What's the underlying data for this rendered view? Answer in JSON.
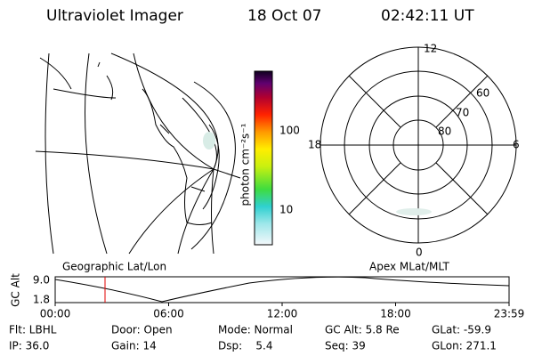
{
  "header": {
    "title": "Ultraviolet Imager",
    "date": "18 Oct 07",
    "time": "02:42:11 UT"
  },
  "colorbar": {
    "label": "photon cm⁻²s⁻¹",
    "ticks": [
      "100",
      "10"
    ]
  },
  "polar": {
    "mlt_labels": [
      "12",
      "18",
      "6",
      "0"
    ],
    "mlat_labels": [
      "60",
      "70",
      "80"
    ]
  },
  "orbit": {
    "left_title": "Geographic Lat/Lon",
    "right_title": "Apex MLat/MLT",
    "y_label": "GC Alt",
    "y_ticks": [
      "9.0",
      "1.8"
    ],
    "x_ticks": [
      "00:00",
      "06:00",
      "12:00",
      "18:00",
      "23:59"
    ]
  },
  "status": {
    "rows": [
      [
        "Flt: LBHL",
        "Door: Open",
        "Mode: Normal",
        "GC Alt: 5.8 Re",
        "GLat: -59.9"
      ],
      [
        "IP: 36.0",
        "Gain: 14",
        "Dsp:    5.4",
        "Seq: 39",
        "GLon: 271.1"
      ]
    ]
  }
}
